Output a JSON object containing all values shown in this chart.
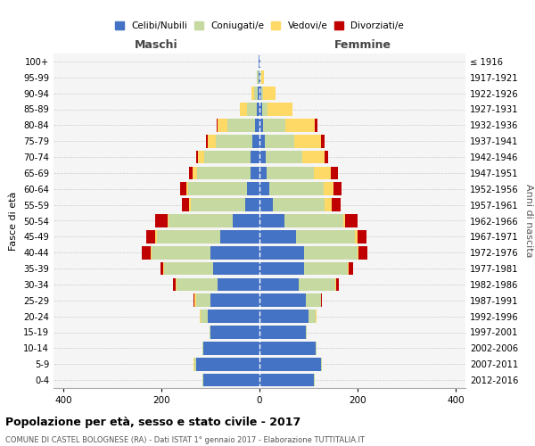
{
  "age_groups": [
    "0-4",
    "5-9",
    "10-14",
    "15-19",
    "20-24",
    "25-29",
    "30-34",
    "35-39",
    "40-44",
    "45-49",
    "50-54",
    "55-59",
    "60-64",
    "65-69",
    "70-74",
    "75-79",
    "80-84",
    "85-89",
    "90-94",
    "95-99",
    "100+"
  ],
  "birth_years": [
    "2012-2016",
    "2007-2011",
    "2002-2006",
    "1997-2001",
    "1992-1996",
    "1987-1991",
    "1982-1986",
    "1977-1981",
    "1972-1976",
    "1967-1971",
    "1962-1966",
    "1957-1961",
    "1952-1956",
    "1947-1951",
    "1942-1946",
    "1937-1941",
    "1932-1936",
    "1927-1931",
    "1922-1926",
    "1917-1921",
    "≤ 1916"
  ],
  "males": {
    "celibi": [
      115,
      130,
      115,
      100,
      105,
      100,
      85,
      95,
      100,
      80,
      55,
      30,
      25,
      18,
      18,
      15,
      10,
      5,
      3,
      2,
      1
    ],
    "coniugati": [
      2,
      2,
      2,
      2,
      15,
      30,
      85,
      100,
      120,
      130,
      130,
      110,
      120,
      110,
      95,
      75,
      55,
      20,
      8,
      3,
      1
    ],
    "vedovi": [
      0,
      2,
      0,
      0,
      2,
      2,
      1,
      1,
      2,
      2,
      2,
      3,
      5,
      8,
      12,
      15,
      20,
      15,
      5,
      1,
      0
    ],
    "divorziati": [
      0,
      0,
      0,
      0,
      0,
      2,
      5,
      5,
      18,
      18,
      25,
      15,
      12,
      8,
      5,
      5,
      2,
      0,
      0,
      0,
      0
    ]
  },
  "females": {
    "nubili": [
      110,
      125,
      115,
      95,
      100,
      95,
      80,
      90,
      90,
      75,
      50,
      28,
      20,
      15,
      12,
      10,
      8,
      5,
      3,
      2,
      1
    ],
    "coniugate": [
      2,
      2,
      2,
      2,
      15,
      30,
      75,
      90,
      110,
      120,
      120,
      105,
      110,
      95,
      75,
      60,
      45,
      12,
      5,
      2,
      0
    ],
    "vedove": [
      0,
      0,
      0,
      0,
      1,
      1,
      1,
      2,
      2,
      5,
      5,
      15,
      20,
      35,
      45,
      55,
      60,
      50,
      25,
      5,
      1
    ],
    "divorziate": [
      0,
      0,
      0,
      0,
      0,
      2,
      5,
      8,
      18,
      18,
      25,
      18,
      18,
      15,
      8,
      8,
      5,
      0,
      0,
      0,
      0
    ]
  },
  "color_celibi": "#4472c4",
  "color_coniugati": "#c5d9a0",
  "color_vedovi": "#ffd966",
  "color_divorziati": "#c00000",
  "xlim": 420,
  "title": "Popolazione per età, sesso e stato civile - 2017",
  "subtitle": "COMUNE DI CASTEL BOLOGNESE (RA) - Dati ISTAT 1° gennaio 2017 - Elaborazione TUTTITALIA.IT",
  "ylabel": "Fasce di età",
  "ylabel_right": "Anni di nascita",
  "xlabel_left": "Maschi",
  "xlabel_right": "Femmine",
  "bg_color": "#f5f5f5",
  "grid_color": "#cccccc"
}
